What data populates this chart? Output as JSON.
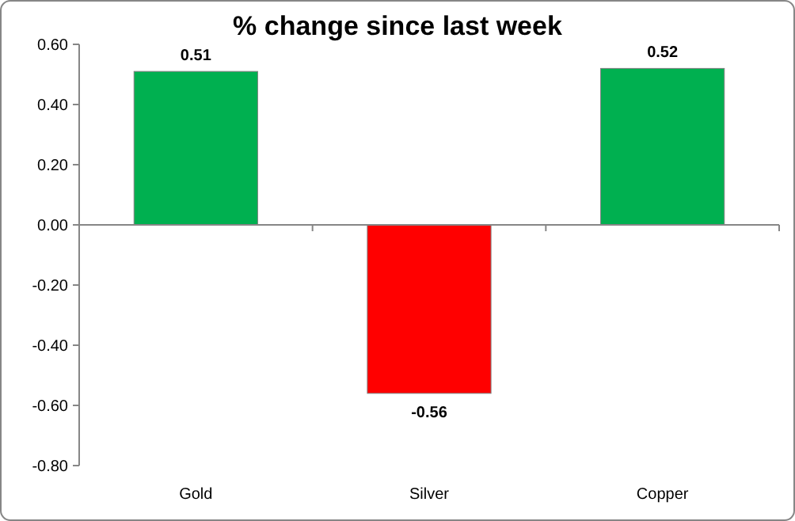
{
  "chart_data": {
    "type": "bar",
    "title": "% change since last week",
    "categories": [
      "Gold",
      "Silver",
      "Copper"
    ],
    "values": [
      0.51,
      -0.56,
      0.52
    ],
    "colors": [
      "#00b050",
      "#ff0000",
      "#00b050"
    ],
    "ylim": [
      -0.8,
      0.6
    ],
    "yticks": [
      {
        "value": 0.6,
        "label": "0.60"
      },
      {
        "value": 0.4,
        "label": "0.40"
      },
      {
        "value": 0.2,
        "label": "0.20"
      },
      {
        "value": 0,
        "label": "0.00"
      },
      {
        "value": -0.2,
        "label": "-0.20"
      },
      {
        "value": -0.4,
        "label": "-0.40"
      },
      {
        "value": -0.6,
        "label": "-0.60"
      },
      {
        "value": -0.8,
        "label": "-0.80"
      }
    ],
    "data_labels": true
  }
}
